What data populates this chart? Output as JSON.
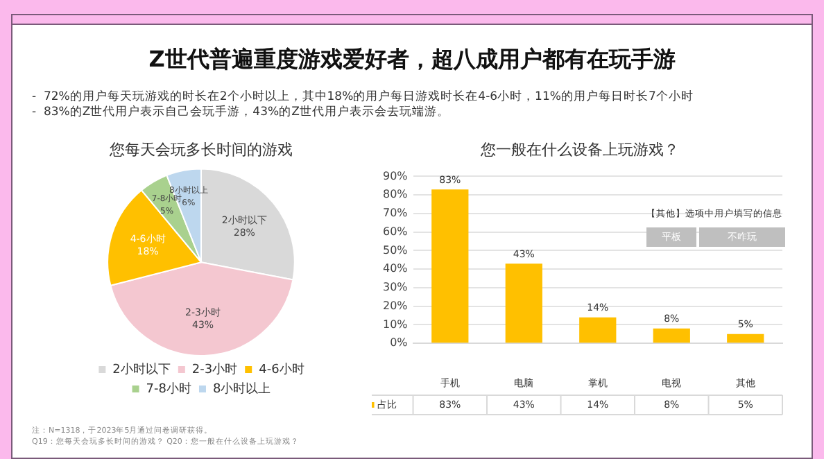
{
  "chart_data": [
    {
      "type": "pie",
      "title": "您每天会玩多长时间的游戏",
      "categories": [
        "2小时以下",
        "2-3小时",
        "4-6小时",
        "7-8小时",
        "8小时以上"
      ],
      "values": [
        28,
        43,
        18,
        5,
        6
      ],
      "colors": [
        "#d9d9d9",
        "#f4c7d0",
        "#ffc000",
        "#a9d18e",
        "#bdd7ee"
      ],
      "value_labels": [
        "28%",
        "43%",
        "18%",
        "5%",
        "6%"
      ],
      "legend": "bottom",
      "annotations": [
        "Z世代普遍重度游戏爱好者，超八成用户都有在玩手游",
        "-  72%的用户每天玩游戏的时长在2个小时以上，其中18%的用户每日游戏时长在4-6小时，11%的用户每日时长7个小时",
        "-  83%的Z世代用户表示自己会玩手游，43%的Z世代用户表示会去玩端游。",
        "注：N=1318，于2023年5月通过问卷调研获得。",
        "Q19：您每天会玩多长时间的游戏？ Q20：您一般在什么设备上玩游戏？"
      ]
    },
    {
      "type": "bar",
      "title": "您一般在什么设备上玩游戏？",
      "categories": [
        "手机",
        "电脑",
        "掌机",
        "电视",
        "其他"
      ],
      "series": [
        {
          "name": "占比",
          "color": "#ffc000",
          "values": [
            83,
            43,
            14,
            8,
            5
          ],
          "value_labels": [
            "83%",
            "43%",
            "14%",
            "8%",
            "5%"
          ]
        }
      ],
      "ylim": [
        0,
        90
      ],
      "yticks": [
        {
          "value": 0,
          "label": "0%"
        },
        {
          "value": 10,
          "label": "10%"
        },
        {
          "value": 20,
          "label": "20%"
        },
        {
          "value": 30,
          "label": "30%"
        },
        {
          "value": 40,
          "label": "40%"
        },
        {
          "value": 50,
          "label": "50%"
        },
        {
          "value": 60,
          "label": "60%"
        },
        {
          "value": 70,
          "label": "70%"
        },
        {
          "value": 80,
          "label": "80%"
        },
        {
          "value": 90,
          "label": "90%"
        }
      ],
      "grid": "y",
      "legend": "bottom",
      "annotations": [
        "【其他】选项中用户填写的信息",
        "平板",
        "不咋玩"
      ]
    }
  ]
}
